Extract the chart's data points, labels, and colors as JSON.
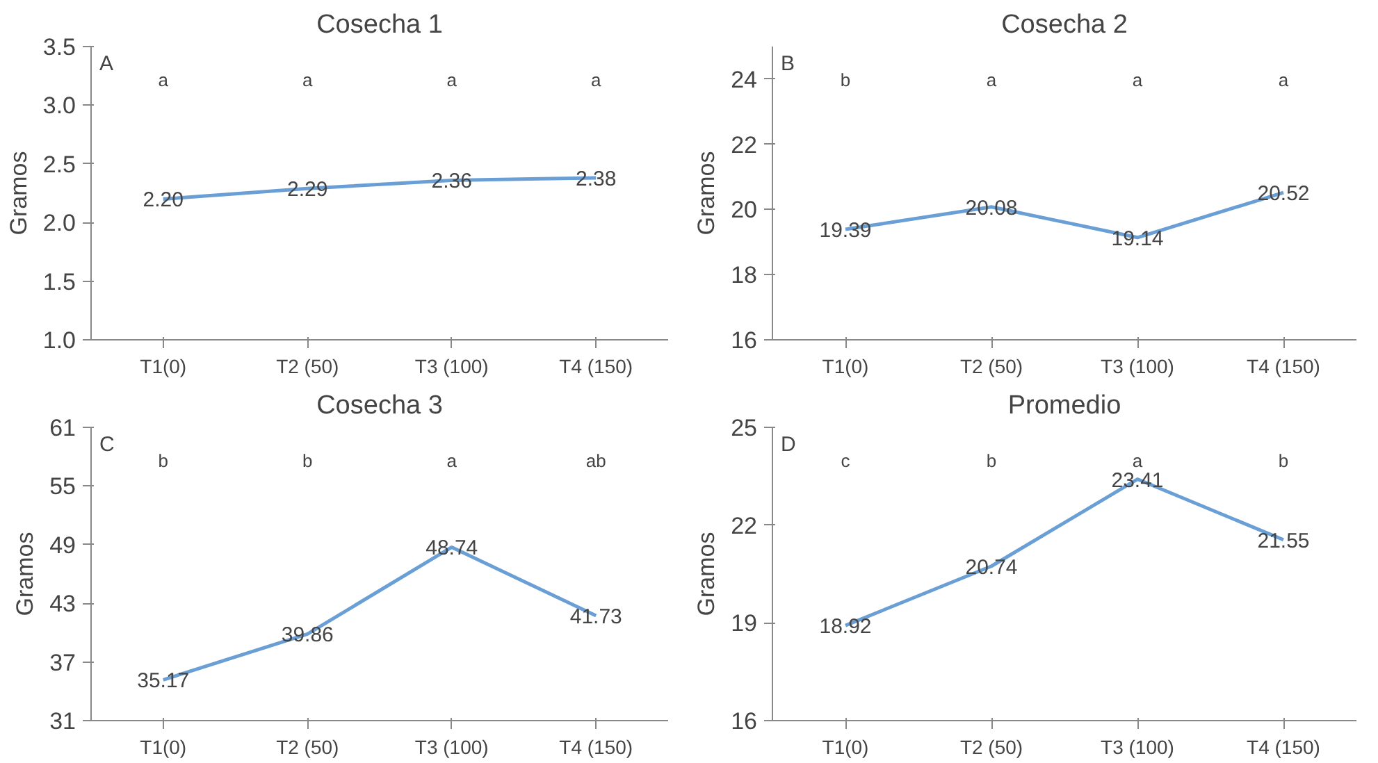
{
  "chart_data": [
    {
      "type": "line",
      "title": "Cosecha 1",
      "ylabel": "Gramos",
      "categories": [
        "T1(0)",
        "T2 (50)",
        "T3 (100)",
        "T4 (150)"
      ],
      "series": [
        {
          "color": "#6a9fd6",
          "values": [
            2.2,
            2.29,
            2.36,
            2.38
          ],
          "value_labels": [
            "2.20",
            "2.29",
            "2.36",
            "2.38"
          ]
        }
      ],
      "ylim": [
        1.0,
        3.5
      ],
      "yticks": [
        {
          "value": 1.0,
          "label": "1.0"
        },
        {
          "value": 1.5,
          "label": "1.5"
        },
        {
          "value": 2.0,
          "label": "2.0"
        },
        {
          "value": 2.5,
          "label": "2.5"
        },
        {
          "value": 3.0,
          "label": "3.0"
        },
        {
          "value": 3.5,
          "label": "3.5"
        }
      ],
      "grid": false,
      "marker": "none",
      "line_style": "solid",
      "annotations": [
        "A",
        "a",
        "a",
        "a",
        "a"
      ]
    },
    {
      "type": "line",
      "title": "Cosecha 2",
      "ylabel": "Gramos",
      "categories": [
        "T1(0)",
        "T2 (50)",
        "T3 (100)",
        "T4 (150)"
      ],
      "series": [
        {
          "color": "#6a9fd6",
          "values": [
            19.39,
            20.08,
            19.14,
            20.52
          ],
          "value_labels": [
            "19.39",
            "20.08",
            "19.14",
            "20.52"
          ]
        }
      ],
      "ylim": [
        16,
        25
      ],
      "yticks": [
        16,
        18,
        20,
        22,
        24
      ],
      "grid": false,
      "marker": "none",
      "line_style": "solid",
      "annotations": [
        "B",
        "b",
        "a",
        "a",
        "a"
      ]
    },
    {
      "type": "line",
      "title": "Cosecha 3",
      "ylabel": "Gramos",
      "categories": [
        "T1(0)",
        "T2 (50)",
        "T3 (100)",
        "T4 (150)"
      ],
      "series": [
        {
          "color": "#6a9fd6",
          "values": [
            35.17,
            39.86,
            48.74,
            41.73
          ],
          "value_labels": [
            "35.17",
            "39.86",
            "48.74",
            "41.73"
          ]
        }
      ],
      "ylim": [
        31,
        61
      ],
      "yticks": [
        31,
        37,
        43,
        49,
        55,
        61
      ],
      "grid": false,
      "marker": "none",
      "line_style": "solid",
      "annotations": [
        "C",
        "b",
        "b",
        "a",
        "ab"
      ]
    },
    {
      "type": "line",
      "title": "Promedio",
      "ylabel": "Gramos",
      "categories": [
        "T1(0)",
        "T2 (50)",
        "T3 (100)",
        "T4 (150)"
      ],
      "series": [
        {
          "color": "#6a9fd6",
          "values": [
            18.92,
            20.74,
            23.41,
            21.55
          ],
          "value_labels": [
            "18.92",
            "20.74",
            "23.41",
            "21.55"
          ]
        }
      ],
      "ylim": [
        16,
        25
      ],
      "yticks": [
        16,
        19,
        22,
        25
      ],
      "grid": false,
      "marker": "none",
      "line_style": "solid",
      "annotations": [
        "D",
        "c",
        "b",
        "a",
        "b"
      ]
    }
  ]
}
